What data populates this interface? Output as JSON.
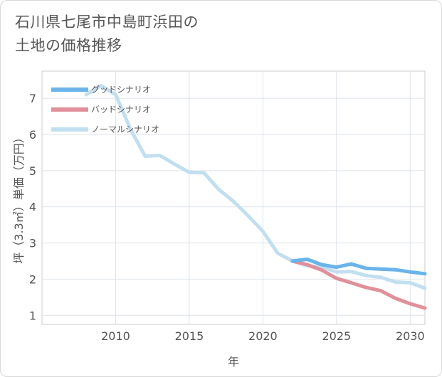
{
  "title_lines": [
    "石川県七尾市中島町浜田の",
    "土地の価格推移"
  ],
  "chart_data": {
    "type": "line",
    "xlabel": "年",
    "ylabel": "坪（3.3㎡）単価（万円）",
    "xlim": [
      2005,
      2031
    ],
    "ylim": [
      0.75,
      7.75
    ],
    "xticks": [
      2010,
      2015,
      2020,
      2025,
      2030
    ],
    "yticks": [
      1,
      2,
      3,
      4,
      5,
      6,
      7
    ],
    "grid": true,
    "legend_position": "top-left",
    "series": [
      {
        "name": "グッドシナリオ",
        "color": "#6ab4ea",
        "x": [
          2022,
          2023,
          2024,
          2025,
          2026,
          2027,
          2028,
          2029,
          2030,
          2031
        ],
        "y": [
          2.5,
          2.55,
          2.4,
          2.33,
          2.42,
          2.3,
          2.28,
          2.26,
          2.2,
          2.15
        ]
      },
      {
        "name": "バッドシナリオ",
        "color": "#e0909a",
        "x": [
          2022,
          2023,
          2024,
          2025,
          2026,
          2027,
          2028,
          2029,
          2030,
          2031
        ],
        "y": [
          2.5,
          2.4,
          2.25,
          2.02,
          1.9,
          1.77,
          1.68,
          1.47,
          1.32,
          1.2
        ]
      },
      {
        "name": "ノーマルシナリオ",
        "color": "#c2dff0",
        "x": [
          2008,
          2009,
          2010,
          2011,
          2012,
          2013,
          2014,
          2015,
          2016,
          2017,
          2018,
          2019,
          2020,
          2021,
          2022,
          2023,
          2024,
          2025,
          2026,
          2027,
          2028,
          2029,
          2030,
          2031
        ],
        "y": [
          7.1,
          7.35,
          7.1,
          6.15,
          5.4,
          5.42,
          5.18,
          4.95,
          4.94,
          4.48,
          4.15,
          3.75,
          3.32,
          2.72,
          2.5,
          2.37,
          2.33,
          2.2,
          2.21,
          2.1,
          2.05,
          1.92,
          1.9,
          1.75
        ]
      }
    ]
  }
}
